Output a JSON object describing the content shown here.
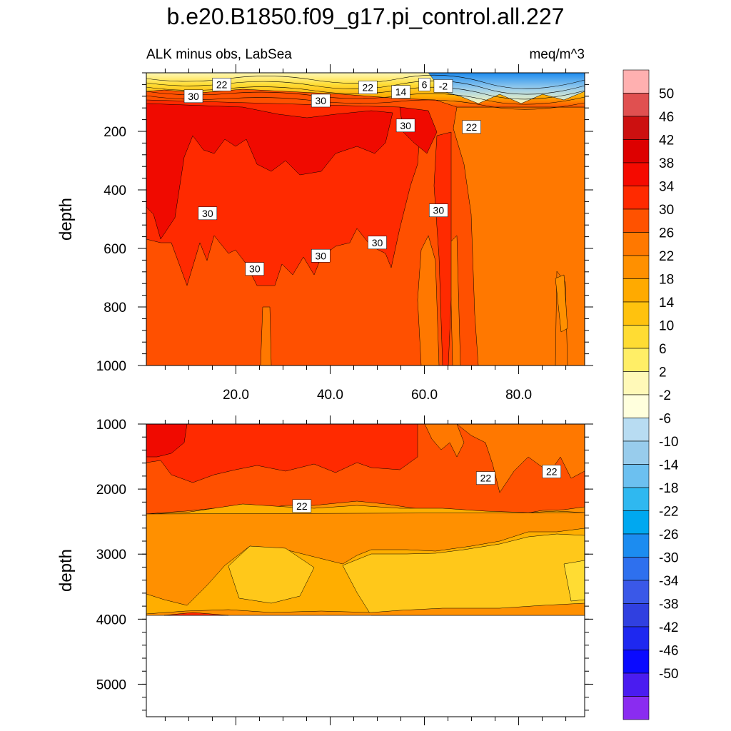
{
  "chart_data": {
    "type": "heatmap",
    "title": "b.e20.B1850.f09_g17.pi_control.all.227",
    "subtitle_left": "ALK minus obs, LabSea",
    "units": "meq/m^3",
    "x_range": [
      1,
      94
    ],
    "x_ticks": [
      20,
      40,
      60,
      80
    ],
    "x_tick_labels": [
      "20.0",
      "40.0",
      "60.0",
      "80.0"
    ],
    "top_panel": {
      "ylabel": "depth",
      "ylim": [
        0,
        1000
      ],
      "y_ticks": [
        200,
        400,
        600,
        800,
        1000
      ],
      "y_tick_labels": [
        "200",
        "400",
        "600",
        "800",
        "1000"
      ],
      "contour_labels": [
        {
          "text": "22",
          "x": 17,
          "depth": 40
        },
        {
          "text": "30",
          "x": 11,
          "depth": 80
        },
        {
          "text": "30",
          "x": 38,
          "depth": 95
        },
        {
          "text": "22",
          "x": 48,
          "depth": 50
        },
        {
          "text": "14",
          "x": 55,
          "depth": 65
        },
        {
          "text": "6",
          "x": 60,
          "depth": 40
        },
        {
          "text": "-2",
          "x": 64,
          "depth": 45
        },
        {
          "text": "30",
          "x": 56,
          "depth": 180
        },
        {
          "text": "22",
          "x": 70,
          "depth": 185
        },
        {
          "text": "30",
          "x": 14,
          "depth": 480
        },
        {
          "text": "30",
          "x": 63,
          "depth": 470
        },
        {
          "text": "30",
          "x": 50,
          "depth": 580
        },
        {
          "text": "30",
          "x": 38,
          "depth": 625
        },
        {
          "text": "30",
          "x": 24,
          "depth": 670
        }
      ]
    },
    "bottom_panel": {
      "ylabel": "depth",
      "ylim": [
        1000,
        5500
      ],
      "y_ticks": [
        1000,
        2000,
        3000,
        4000,
        5000
      ],
      "y_tick_labels": [
        "1000",
        "2000",
        "3000",
        "4000",
        "5000"
      ],
      "ocean_floor_depth": 3880,
      "contour_labels": [
        {
          "text": "22",
          "x": 34,
          "depth": 2260
        },
        {
          "text": "22",
          "x": 73,
          "depth": 1830
        },
        {
          "text": "22",
          "x": 87,
          "depth": 1730
        }
      ]
    },
    "colorbar": {
      "levels": [
        -50,
        -46,
        -42,
        -38,
        -34,
        -30,
        -26,
        -22,
        -18,
        -14,
        -10,
        -6,
        -2,
        2,
        6,
        10,
        14,
        18,
        22,
        26,
        30,
        34,
        38,
        42,
        46,
        50
      ],
      "labels": [
        "50",
        "46",
        "42",
        "38",
        "34",
        "30",
        "26",
        "22",
        "18",
        "14",
        "10",
        "6",
        "2",
        "-2",
        "-6",
        "-10",
        "-14",
        "-18",
        "-22",
        "-26",
        "-30",
        "-34",
        "-38",
        "-42",
        "-46",
        "-50"
      ],
      "colors_top_to_bottom": [
        "#FFB0B0",
        "#E05050",
        "#CC1010",
        "#DD0000",
        "#F50A00",
        "#FF2A00",
        "#FF5200",
        "#FF7800",
        "#FF9000",
        "#FFAA00",
        "#FFC20E",
        "#FFDC33",
        "#FFEE66",
        "#FFF9B8",
        "#FFFFDD",
        "#B8DCF2",
        "#98CCEC",
        "#6CC0F0",
        "#2FB8F0",
        "#00A8F0",
        "#1C8CF0",
        "#2E70EE",
        "#3A58E8",
        "#3040E0",
        "#1E28F0",
        "#0A0AFF",
        "#4A1CF0",
        "#8A2CF0"
      ]
    },
    "colors": {
      "c34": "#F52A00",
      "c30": "#FF2A00",
      "c26": "#FF5000",
      "c22": "#FF7800",
      "c18": "#FF9000",
      "c14": "#FFAE00",
      "c10": "#FFC81A",
      "c6": "#FFE040",
      "c2": "#FFF080"
    }
  }
}
